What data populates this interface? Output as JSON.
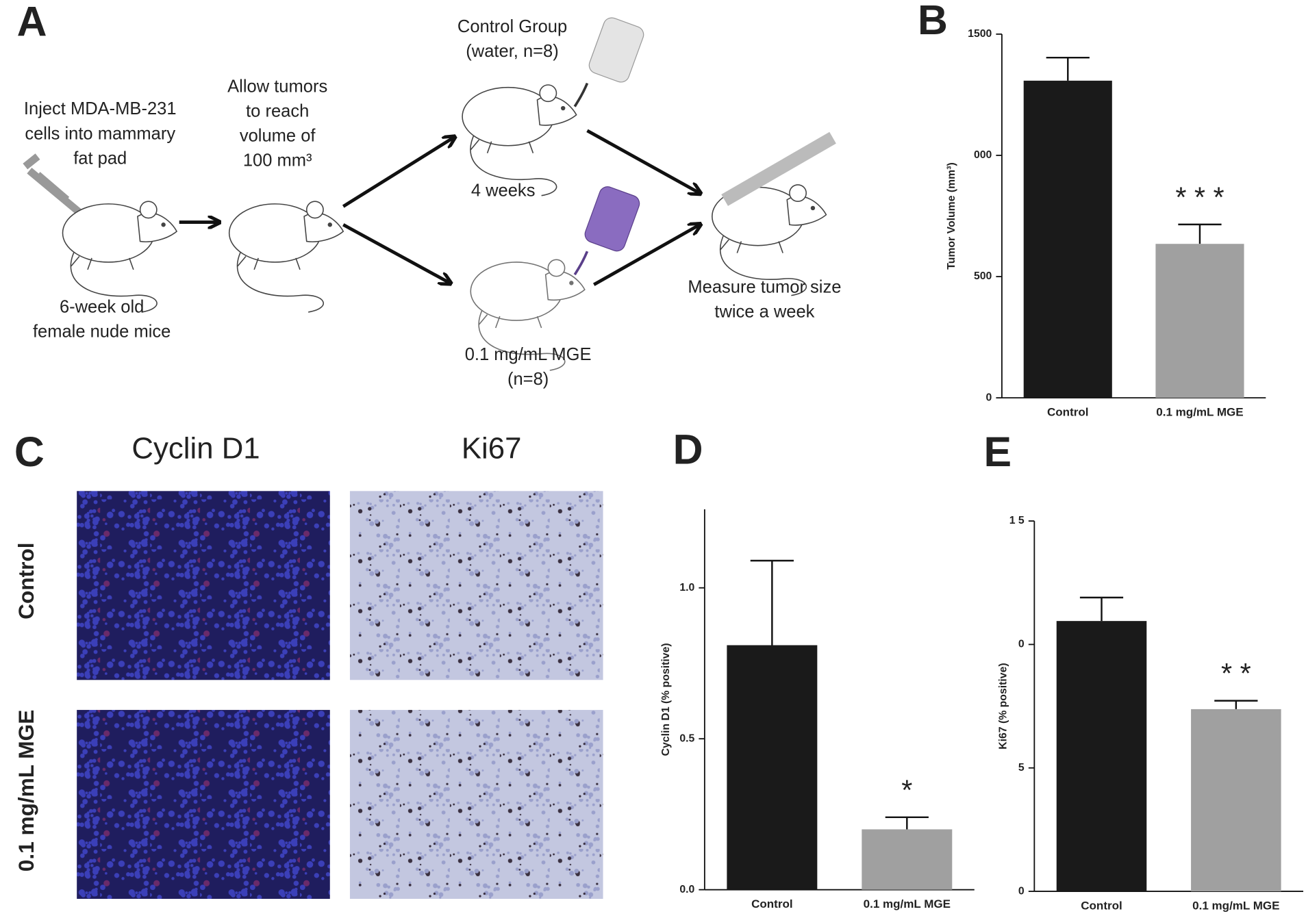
{
  "figure": {
    "panel_labels": [
      "A",
      "B",
      "C",
      "D",
      "E"
    ],
    "diagram": {
      "inject": [
        "Inject MDA-MB-231",
        "cells into mammary",
        "fat pad"
      ],
      "mice": [
        "6-week old",
        "female nude mice"
      ],
      "allow": [
        "Allow tumors",
        "to reach",
        "volume of",
        "100 mm³"
      ],
      "control_group": [
        "Control Group",
        "(water, n=8)"
      ],
      "duration": [
        "4 weeks"
      ],
      "treatment": [
        "0.1 mg/mL MGE",
        "(n=8)"
      ],
      "measure": [
        "Measure tumor size",
        "twice a week"
      ]
    },
    "images": {
      "column_titles": [
        "Cyclin D1",
        "Ki67"
      ],
      "row_labels": [
        "Control",
        "0.1 mg/mL MGE"
      ]
    }
  },
  "chart_data": [
    {
      "type": "bar",
      "ylabel": "Tumor Volume (mm³)",
      "categories": [
        "Control",
        "0.1 mg/mL MGE"
      ],
      "values": [
        1308,
        635
      ],
      "errors": [
        95,
        80
      ],
      "colors": [
        "#1a1a1a",
        "#a0a0a0"
      ],
      "annotations": [
        null,
        "* * *"
      ],
      "ylim": [
        0,
        1500
      ],
      "yticks": [
        0,
        500,
        {
          "value": 1000,
          "label": "000"
        },
        1500
      ]
    },
    {
      "type": "bar",
      "ylabel": "Cyclin D1 (% positive)",
      "categories": [
        "Control",
        "0.1 mg/mL MGE"
      ],
      "values": [
        0.81,
        0.2
      ],
      "errors": [
        0.28,
        0.04
      ],
      "colors": [
        "#1a1a1a",
        "#a0a0a0"
      ],
      "annotations": [
        null,
        "*"
      ],
      "ylim": [
        0,
        1.26
      ],
      "yticks": [
        {
          "value": 0,
          "label": "0.0"
        },
        0.5,
        {
          "value": 1,
          "label": "1.0"
        }
      ]
    },
    {
      "type": "bar",
      "ylabel": "Ki67 (% positive)",
      "categories": [
        "Control",
        "0.1 mg/mL MGE"
      ],
      "values": [
        10.95,
        7.38
      ],
      "errors": [
        0.95,
        0.34
      ],
      "colors": [
        "#1a1a1a",
        "#a0a0a0"
      ],
      "annotations": [
        null,
        "* *"
      ],
      "ylim": [
        0,
        15
      ],
      "yticks": [
        0,
        5,
        {
          "value": 10,
          "label": "0"
        },
        {
          "value": 15,
          "label": "1 5"
        }
      ]
    }
  ]
}
